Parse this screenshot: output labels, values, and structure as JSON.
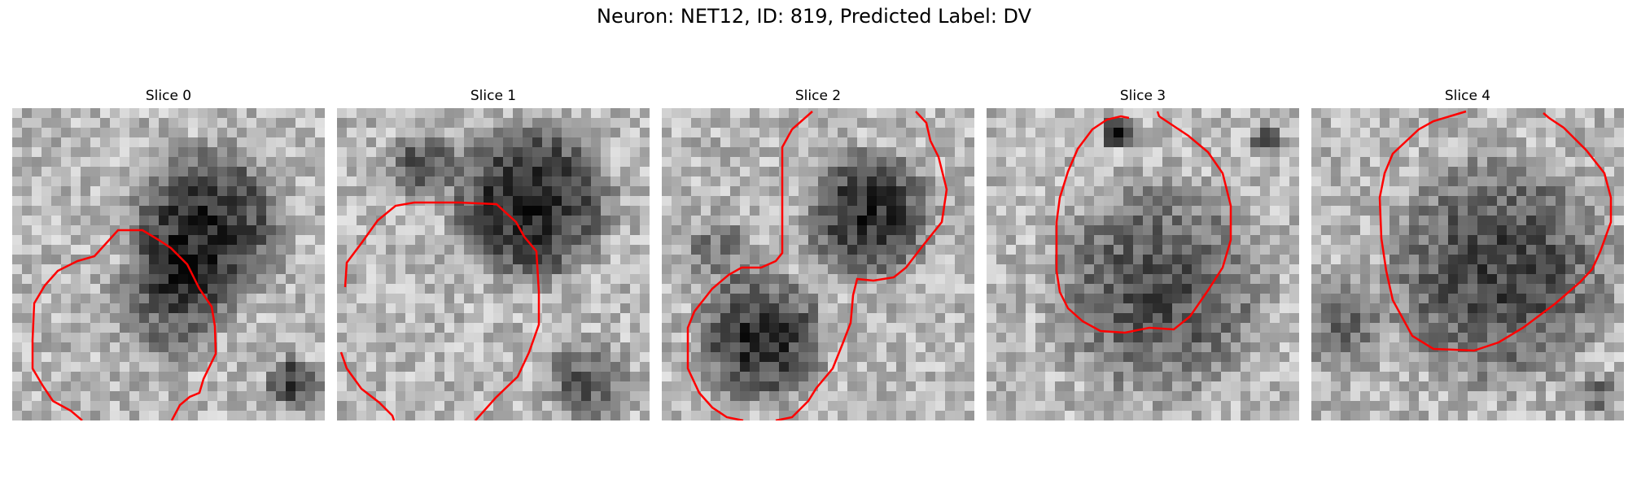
{
  "figure": {
    "title": "Neuron: NET12, ID: 819, Predicted Label: DV"
  },
  "panels": [
    {
      "title": "Slice 0"
    },
    {
      "title": "Slice 1"
    },
    {
      "title": "Slice 2"
    },
    {
      "title": "Slice 3"
    },
    {
      "title": "Slice 4"
    }
  ],
  "colors": {
    "contour": "#ff0000",
    "background": "#ffffff"
  }
}
